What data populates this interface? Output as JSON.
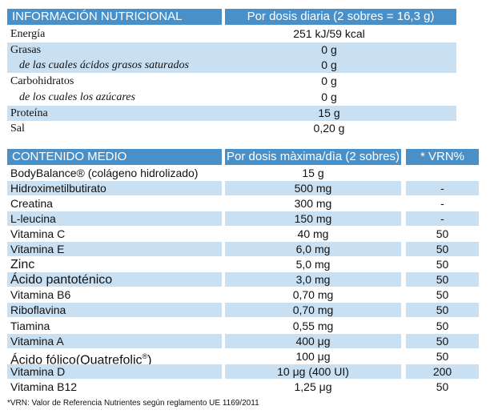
{
  "nutrition": {
    "header_left": "INFORMACIÓN NUTRICIONAL",
    "header_right": "Por dosis diaria (2 sobres = 16,3 g)",
    "rows": [
      {
        "label": "Energía",
        "value": "251 kJ/59 kcal",
        "shaded": false,
        "indent": false
      },
      {
        "label": "Grasas",
        "value": "0 g",
        "shaded": true,
        "indent": false
      },
      {
        "label": "de las cuales ácidos grasos saturados",
        "value": "0 g",
        "shaded": true,
        "indent": true
      },
      {
        "label": "Carbohidratos",
        "value": "0 g",
        "shaded": false,
        "indent": false
      },
      {
        "label": "de los cuales los azúcares",
        "value": "0 g",
        "shaded": false,
        "indent": true
      },
      {
        "label": "Proteína",
        "value": "15 g",
        "shaded": true,
        "indent": false
      },
      {
        "label": "Sal",
        "value": "0,20 g",
        "shaded": false,
        "indent": false
      }
    ]
  },
  "content": {
    "header_left": "CONTENIDO MEDIO",
    "header_mid": "Por dosis màxima/dìa (2 sobres)",
    "header_right": "* VRN%",
    "rows": [
      {
        "label": "BodyBalance® (colágeno hidrolizado)",
        "value": "15 g",
        "vrn": "",
        "shaded": false
      },
      {
        "label": "Hidroximetilbutirato",
        "value": "500 mg",
        "vrn": "-",
        "shaded": true
      },
      {
        "label": "Creatina",
        "value": "300 mg",
        "vrn": "-",
        "shaded": false
      },
      {
        "label": "L-leucina",
        "value": "150 mg",
        "vrn": "-",
        "shaded": true
      },
      {
        "label": "Vitamina C",
        "value": "40 mg",
        "vrn": "50",
        "shaded": false
      },
      {
        "label": "Vitamina E",
        "value": "6,0 mg",
        "vrn": "50",
        "shaded": true
      },
      {
        "label": "Zinc",
        "value": "5,0 mg",
        "vrn": "50",
        "shaded": false
      },
      {
        "label": "Ácido pantoténico",
        "value": "3,0 mg",
        "vrn": "50",
        "shaded": true
      },
      {
        "label": "Vitamina B6",
        "value": "0,70 mg",
        "vrn": "50",
        "shaded": false
      },
      {
        "label": "Riboflavina",
        "value": "0,70 mg",
        "vrn": "50",
        "shaded": true
      },
      {
        "label": "Tiamina",
        "value": "0,55 mg",
        "vrn": "50",
        "shaded": false
      },
      {
        "label": "Vitamina A",
        "value": "400 μg",
        "vrn": "50",
        "shaded": true
      },
      {
        "label": "Ácido fólico(Quatrefolic®)",
        "value": "100 μg",
        "vrn": "50",
        "shaded": false
      },
      {
        "label": "Vitamina D",
        "value": "10 μg (400 UI)",
        "vrn": "200",
        "shaded": true
      },
      {
        "label": "Vitamina B12",
        "value": "1,25 μg",
        "vrn": "50",
        "shaded": false
      }
    ]
  },
  "footnote": "*VRN: Valor de Referencia Nutrientes según reglamento UE 1169/2011",
  "colors": {
    "header": "#4a90c8",
    "band": "#c9e0f2"
  }
}
